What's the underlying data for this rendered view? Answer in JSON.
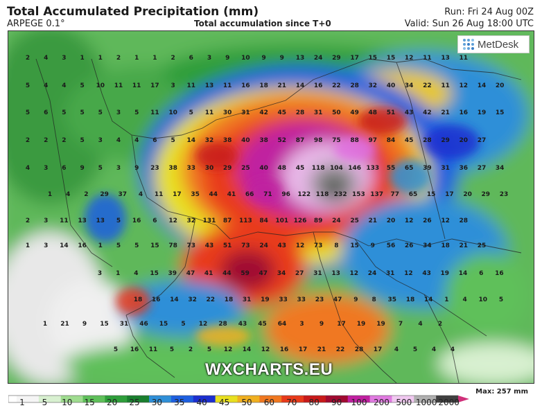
{
  "header": {
    "title": "Total Accumulated Precipitation (mm)",
    "model": "ARPEGE 0.1°",
    "subtitle": "Total accumulation since T+0",
    "run": "Run: Fri 24 Aug 00Z",
    "valid": "Valid: Sun 26 Aug 18:00 UTC"
  },
  "brand": {
    "logo": "MetDesk",
    "watermark": "WXCHARTS.EU"
  },
  "legend": {
    "ticks": [
      "1",
      "5",
      "10",
      "15",
      "20",
      "25",
      "30",
      "35",
      "40",
      "45",
      "50",
      "60",
      "70",
      "80",
      "90",
      "100",
      "200",
      "500",
      "1000",
      "2000"
    ],
    "colors": [
      "#f5f5f5",
      "#d8f0d0",
      "#9fdc8f",
      "#5fc05a",
      "#2e9e3a",
      "#1a7f2e",
      "#2f8fd8",
      "#1e5fe0",
      "#1c2fd0",
      "#e8e020",
      "#f0b020",
      "#f07820",
      "#e83a1a",
      "#c81a1a",
      "#a00a30",
      "#c020a0",
      "#e07ae0",
      "#f0c8f0",
      "#b0b0b0",
      "#404040"
    ],
    "max": "Max: 257 mm"
  },
  "map_values": [
    [
      "2",
      "4",
      "3",
      "1",
      "1",
      "2",
      "1",
      "1",
      "2",
      "6",
      "3",
      "9",
      "10",
      "9",
      "9",
      "13",
      "24",
      "29",
      "17",
      "15",
      "15",
      "12",
      "11",
      "13",
      "11"
    ],
    [
      "5",
      "4",
      "4",
      "5",
      "10",
      "11",
      "11",
      "17",
      "3",
      "11",
      "13",
      "11",
      "16",
      "18",
      "21",
      "14",
      "16",
      "22",
      "28",
      "32",
      "40",
      "34",
      "22",
      "11",
      "12",
      "14",
      "20"
    ],
    [
      "5",
      "6",
      "5",
      "5",
      "5",
      "3",
      "5",
      "11",
      "10",
      "5",
      "11",
      "30",
      "31",
      "42",
      "45",
      "28",
      "31",
      "50",
      "49",
      "48",
      "51",
      "43",
      "42",
      "21",
      "16",
      "19",
      "15"
    ],
    [
      "2",
      "2",
      "2",
      "5",
      "3",
      "4",
      "4",
      "6",
      "5",
      "14",
      "32",
      "38",
      "40",
      "38",
      "52",
      "87",
      "98",
      "75",
      "88",
      "97",
      "84",
      "45",
      "28",
      "29",
      "20",
      "27"
    ],
    [
      "4",
      "3",
      "6",
      "9",
      "5",
      "3",
      "9",
      "23",
      "38",
      "33",
      "30",
      "29",
      "25",
      "40",
      "48",
      "45",
      "118",
      "104",
      "146",
      "133",
      "55",
      "65",
      "39",
      "31",
      "36",
      "27",
      "34"
    ],
    [
      "1",
      "4",
      "2",
      "29",
      "37",
      "4",
      "11",
      "17",
      "35",
      "44",
      "41",
      "66",
      "71",
      "96",
      "122",
      "118",
      "232",
      "153",
      "137",
      "77",
      "65",
      "15",
      "17",
      "20",
      "29",
      "23"
    ],
    [
      "2",
      "3",
      "11",
      "13",
      "13",
      "5",
      "16",
      "6",
      "12",
      "32",
      "131",
      "87",
      "113",
      "84",
      "101",
      "126",
      "89",
      "24",
      "25",
      "21",
      "20",
      "12",
      "26",
      "12",
      "28"
    ],
    [
      "1",
      "3",
      "14",
      "16",
      "1",
      "5",
      "5",
      "15",
      "78",
      "73",
      "43",
      "51",
      "73",
      "24",
      "43",
      "12",
      "73",
      "8",
      "15",
      "9",
      "56",
      "26",
      "34",
      "18",
      "21",
      "25"
    ],
    [
      "3",
      "1",
      "4",
      "15",
      "39",
      "47",
      "41",
      "44",
      "59",
      "47",
      "34",
      "27",
      "31",
      "13",
      "12",
      "24",
      "31",
      "12",
      "43",
      "19",
      "14",
      "6",
      "16"
    ],
    [
      "18",
      "16",
      "14",
      "32",
      "22",
      "18",
      "31",
      "19",
      "33",
      "33",
      "23",
      "47",
      "9",
      "8",
      "35",
      "18",
      "14",
      "1",
      "4",
      "10",
      "5"
    ],
    [
      "1",
      "21",
      "9",
      "15",
      "31",
      "46",
      "15",
      "5",
      "12",
      "28",
      "43",
      "45",
      "64",
      "3",
      "9",
      "17",
      "19",
      "19",
      "7",
      "4",
      "2"
    ],
    [
      "5",
      "16",
      "11",
      "5",
      "2",
      "5",
      "12",
      "14",
      "12",
      "16",
      "17",
      "21",
      "22",
      "28",
      "17",
      "4",
      "5",
      "4",
      "4"
    ]
  ]
}
